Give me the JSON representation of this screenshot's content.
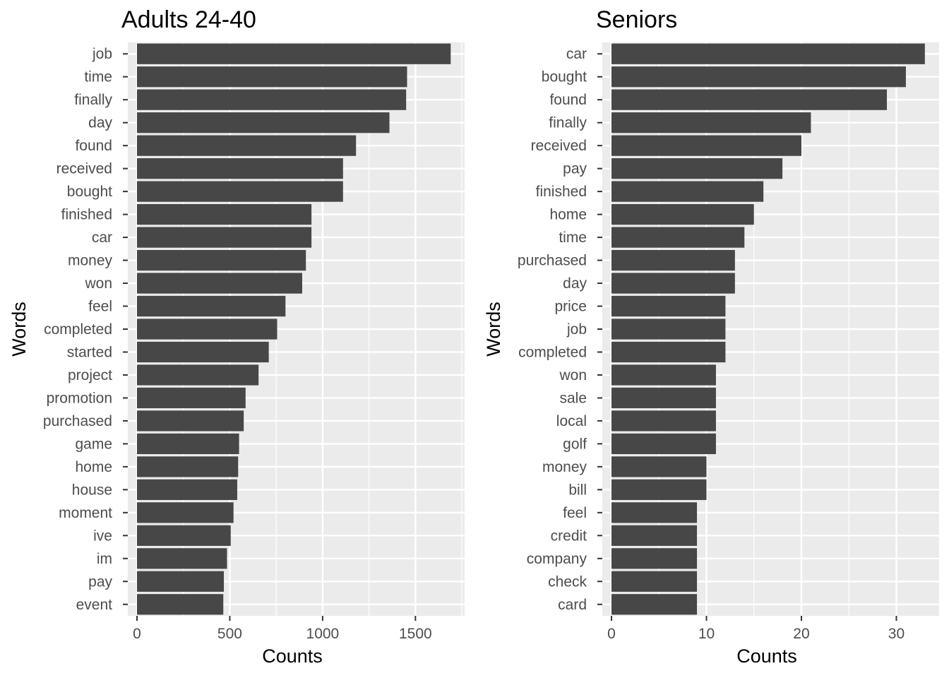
{
  "chart_data": [
    {
      "type": "bar",
      "orientation": "horizontal",
      "title": "Adults 24-40",
      "xlabel": "Counts",
      "ylabel": "Words",
      "xlim": [
        0,
        1765
      ],
      "xticks": [
        0,
        500,
        1000,
        1500
      ],
      "xtick_labels": [
        "0",
        "500",
        "1000",
        "1500"
      ],
      "grid": true,
      "bar_color": "#474747",
      "panel_color": "#ebebeb",
      "categories": [
        "job",
        "time",
        "finally",
        "day",
        "found",
        "received",
        "bought",
        "finished",
        "car",
        "money",
        "won",
        "feel",
        "completed",
        "started",
        "project",
        "promotion",
        "purchased",
        "game",
        "home",
        "house",
        "moment",
        "ive",
        "im",
        "pay",
        "event"
      ],
      "values": [
        1690,
        1455,
        1450,
        1360,
        1180,
        1110,
        1110,
        940,
        940,
        910,
        890,
        800,
        755,
        710,
        655,
        585,
        575,
        550,
        545,
        540,
        520,
        505,
        485,
        468,
        465
      ]
    },
    {
      "type": "bar",
      "orientation": "horizontal",
      "title": "Seniors",
      "xlabel": "Counts",
      "ylabel": "Words",
      "xlim": [
        0,
        34.5
      ],
      "xticks": [
        0,
        10,
        20,
        30
      ],
      "xtick_labels": [
        "0",
        "10",
        "20",
        "30"
      ],
      "grid": true,
      "bar_color": "#474747",
      "panel_color": "#ebebeb",
      "categories": [
        "car",
        "bought",
        "found",
        "finally",
        "received",
        "pay",
        "finished",
        "home",
        "time",
        "purchased",
        "day",
        "price",
        "job",
        "completed",
        "won",
        "sale",
        "local",
        "golf",
        "money",
        "bill",
        "feel",
        "credit",
        "company",
        "check",
        "card"
      ],
      "values": [
        33,
        31,
        29,
        21,
        20,
        18,
        16,
        15,
        14,
        13,
        13,
        12,
        12,
        12,
        11,
        11,
        11,
        11,
        10,
        10,
        9,
        9,
        9,
        9,
        9
      ]
    }
  ]
}
